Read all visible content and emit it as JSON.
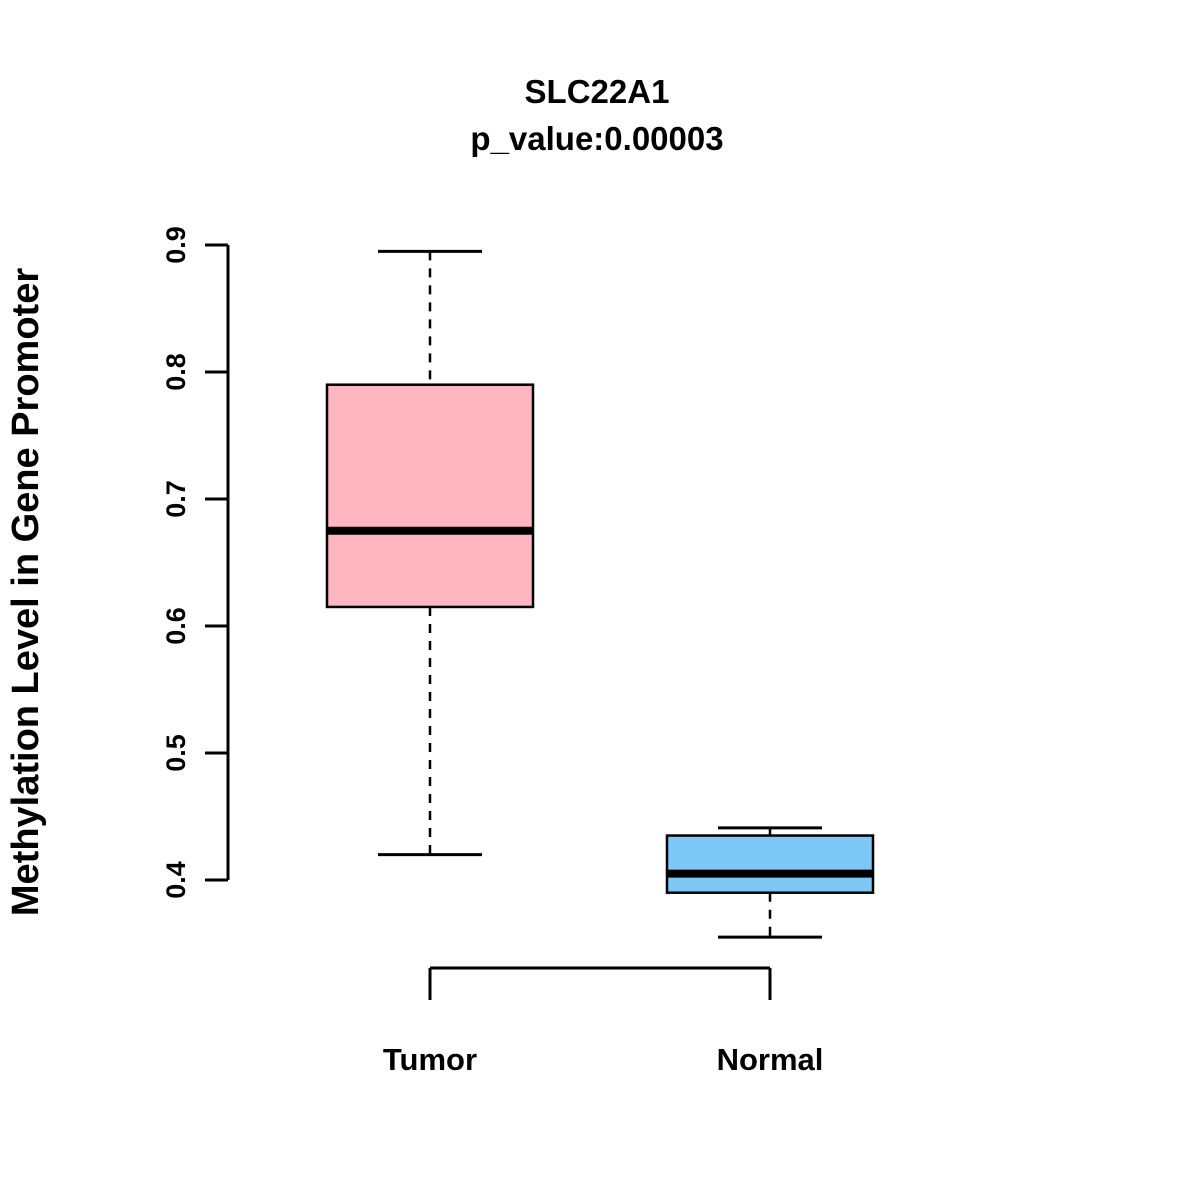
{
  "chart_data": {
    "type": "boxplot",
    "title": "SLC22A1",
    "subtitle": "p_value:0.00003",
    "ylabel": "Methylation Level in Gene Promoter",
    "xlabel": "",
    "categories": [
      "Tumor",
      "Normal"
    ],
    "yticks": [
      0.4,
      0.5,
      0.6,
      0.7,
      0.8,
      0.9
    ],
    "ylim": [
      0.33,
      0.92
    ],
    "grid": false,
    "legend": false,
    "background_color": "#ffffff",
    "axis_color": "#000000",
    "series": [
      {
        "name": "Tumor",
        "box_color": "#FFB6C1",
        "whisker_low": 0.42,
        "q1": 0.615,
        "median": 0.675,
        "q3": 0.79,
        "whisker_high": 0.895
      },
      {
        "name": "Normal",
        "box_color": "#7EC8F8",
        "whisker_low": 0.355,
        "q1": 0.39,
        "median": 0.405,
        "q3": 0.435,
        "whisker_high": 0.441
      }
    ]
  }
}
